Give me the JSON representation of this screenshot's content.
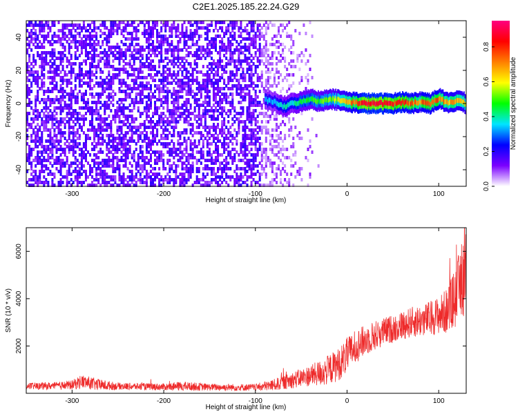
{
  "title": "C2E1.2025.185.22.24.G29",
  "chart_data": [
    {
      "type": "heatmap",
      "xlabel": "Height of straight line (km)",
      "ylabel": "Frequency (Hz)",
      "xlim": [
        -350,
        130
      ],
      "ylim": [
        -50,
        50
      ],
      "x_ticks": [
        -300,
        -200,
        -100,
        0,
        100
      ],
      "y_ticks": [
        -40,
        -20,
        0,
        20,
        40
      ],
      "grid": false,
      "colorbar": {
        "label": "Normalized spectral amplitude",
        "range": [
          0,
          0.95
        ],
        "ticks": [
          0.0,
          0.2,
          0.4,
          0.6,
          0.8
        ],
        "colormap": [
          "#ffffff",
          "#7b00ff",
          "#0000ff",
          "#00e5ff",
          "#00ff00",
          "#ffff00",
          "#ff7f00",
          "#ff0000",
          "#ff0080"
        ]
      },
      "noise_region": {
        "x_range": [
          -350,
          -30
        ],
        "dense_x_range": [
          -350,
          -95
        ]
      },
      "signal_track": [
        {
          "x": -90,
          "freq": 2,
          "amp": 0.35
        },
        {
          "x": -80,
          "freq": 1,
          "amp": 0.35
        },
        {
          "x": -70,
          "freq": -2,
          "amp": 0.4
        },
        {
          "x": -60,
          "freq": 0,
          "amp": 0.4
        },
        {
          "x": -50,
          "freq": 1,
          "amp": 0.45
        },
        {
          "x": -40,
          "freq": 3,
          "amp": 0.5
        },
        {
          "x": -30,
          "freq": 1,
          "amp": 0.5
        },
        {
          "x": -20,
          "freq": 3,
          "amp": 0.55
        },
        {
          "x": -10,
          "freq": 2,
          "amp": 0.6
        },
        {
          "x": 0,
          "freq": 1,
          "amp": 0.7
        },
        {
          "x": 10,
          "freq": 0.5,
          "amp": 0.8
        },
        {
          "x": 20,
          "freq": 0,
          "amp": 0.9
        },
        {
          "x": 30,
          "freq": 0,
          "amp": 0.92
        },
        {
          "x": 40,
          "freq": 0,
          "amp": 0.9
        },
        {
          "x": 50,
          "freq": 0,
          "amp": 0.85
        },
        {
          "x": 60,
          "freq": 1,
          "amp": 0.85
        },
        {
          "x": 70,
          "freq": 0,
          "amp": 0.8
        },
        {
          "x": 80,
          "freq": 1,
          "amp": 0.75
        },
        {
          "x": 90,
          "freq": 0,
          "amp": 0.8
        },
        {
          "x": 100,
          "freq": 3,
          "amp": 0.75
        },
        {
          "x": 110,
          "freq": 0,
          "amp": 0.7
        },
        {
          "x": 120,
          "freq": 2,
          "amp": 0.7
        },
        {
          "x": 130,
          "freq": 0,
          "amp": 0.65
        }
      ]
    },
    {
      "type": "line",
      "xlabel": "Height of straight line (km)",
      "ylabel": "SNR (10 * v/v)",
      "xlim": [
        -350,
        130
      ],
      "ylim": [
        0,
        7000
      ],
      "x_ticks": [
        -300,
        -200,
        -100,
        0,
        100
      ],
      "y_ticks": [
        2000,
        4000,
        6000
      ],
      "grid": false,
      "series": [
        {
          "color": "#ee2b2b",
          "x": [
            -350,
            -320,
            -300,
            -290,
            -270,
            -250,
            -220,
            -200,
            -180,
            -150,
            -120,
            -100,
            -80,
            -60,
            -40,
            -25,
            -10,
            0,
            10,
            25,
            40,
            55,
            70,
            85,
            100,
            110,
            120,
            125,
            130
          ],
          "y": [
            300,
            310,
            350,
            500,
            350,
            300,
            280,
            270,
            300,
            260,
            250,
            250,
            350,
            550,
            750,
            900,
            1200,
            1600,
            2000,
            2350,
            2600,
            2800,
            3000,
            3100,
            3300,
            3500,
            4200,
            4800,
            5200
          ],
          "noise": [
            150,
            150,
            200,
            300,
            250,
            150,
            150,
            150,
            200,
            150,
            150,
            150,
            250,
            350,
            450,
            600,
            700,
            750,
            700,
            650,
            600,
            600,
            650,
            700,
            800,
            1000,
            1400,
            1700,
            1800
          ]
        }
      ]
    }
  ]
}
